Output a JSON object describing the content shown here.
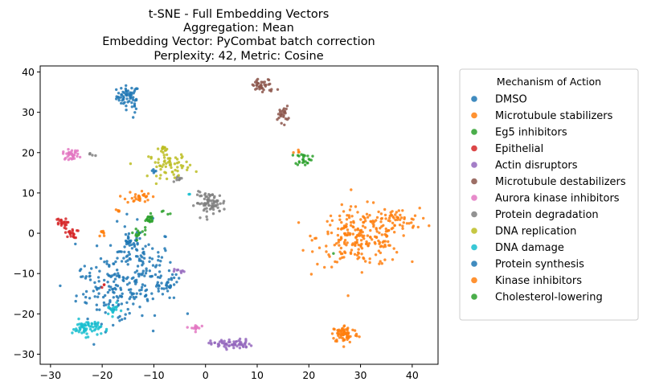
{
  "chart_data": {
    "type": "scatter",
    "title": [
      "t-SNE - Full Embedding Vectors",
      "Aggregation: Mean",
      "Embedding Vector: PyCombat batch correction",
      "Perplexity: 42, Metric: Cosine"
    ],
    "xlabel": "",
    "ylabel": "",
    "xlim": [
      -32,
      45
    ],
    "ylim": [
      -32.5,
      41.5
    ],
    "xticks": [
      -30,
      -20,
      -10,
      0,
      10,
      20,
      30,
      40
    ],
    "yticks": [
      -30,
      -20,
      -10,
      0,
      10,
      20,
      30,
      40
    ],
    "grid": false,
    "legend": {
      "title": "Mechanism of Action",
      "position": "outside-right"
    },
    "series": [
      {
        "name": "DMSO",
        "color": "#1f77b4",
        "clusters": [
          {
            "x": -15,
            "y": 34,
            "sx": 1.1,
            "sy": 1.3,
            "n": 55
          },
          {
            "x": -14,
            "y": 31,
            "sx": 0.4,
            "sy": 1.5,
            "n": 8
          },
          {
            "x": -13,
            "y": -9,
            "sx": 3.5,
            "sy": 5.5,
            "n": 140
          },
          {
            "x": -18,
            "y": -14,
            "sx": 3.5,
            "sy": 4.0,
            "n": 120
          },
          {
            "x": -10,
            "y": 15,
            "sx": 0.6,
            "sy": 0.5,
            "n": 5
          }
        ]
      },
      {
        "name": "Microtubule stabilizers",
        "color": "#ff7f0e",
        "clusters": [
          {
            "x": 30,
            "y": -1,
            "sx": 4.2,
            "sy": 3.6,
            "n": 230
          },
          {
            "x": 37,
            "y": 3,
            "sx": 2.2,
            "sy": 1.6,
            "n": 45
          },
          {
            "x": 27,
            "y": -25,
            "sx": 1.3,
            "sy": 1.1,
            "n": 75
          },
          {
            "x": -13,
            "y": 9,
            "sx": 1.2,
            "sy": 0.8,
            "n": 30
          },
          {
            "x": 18,
            "y": 20.5,
            "sx": 0.4,
            "sy": 0.4,
            "n": 4
          }
        ]
      },
      {
        "name": "Eg5 inhibitors",
        "color": "#2ca02c",
        "clusters": [
          {
            "x": 19,
            "y": 18.5,
            "sx": 0.8,
            "sy": 0.8,
            "n": 25
          },
          {
            "x": -11,
            "y": 3.5,
            "sx": 0.6,
            "sy": 0.6,
            "n": 18
          }
        ]
      },
      {
        "name": "Epithelial",
        "color": "#d62728",
        "clusters": [
          {
            "x": -28,
            "y": 2.5,
            "sx": 0.6,
            "sy": 0.6,
            "n": 22
          },
          {
            "x": -26,
            "y": 0,
            "sx": 0.6,
            "sy": 0.6,
            "n": 22
          },
          {
            "x": -20,
            "y": -13,
            "sx": 0.3,
            "sy": 0.3,
            "n": 3
          }
        ]
      },
      {
        "name": "Actin disruptors",
        "color": "#9467bd",
        "clusters": [
          {
            "x": 5,
            "y": -27.5,
            "sx": 2.0,
            "sy": 0.6,
            "n": 65
          },
          {
            "x": -5,
            "y": -9.5,
            "sx": 0.5,
            "sy": 0.4,
            "n": 8
          }
        ]
      },
      {
        "name": "Microtubule destabilizers",
        "color": "#8c564b",
        "clusters": [
          {
            "x": 11,
            "y": 36.5,
            "sx": 1.3,
            "sy": 0.9,
            "n": 40
          },
          {
            "x": 15,
            "y": 29.5,
            "sx": 0.5,
            "sy": 1.0,
            "n": 25
          }
        ]
      },
      {
        "name": "Aurora kinase inhibitors",
        "color": "#e377c2",
        "clusters": [
          {
            "x": -26,
            "y": 19.5,
            "sx": 0.8,
            "sy": 0.6,
            "n": 35
          },
          {
            "x": -2,
            "y": -23.5,
            "sx": 0.5,
            "sy": 0.4,
            "n": 15
          }
        ]
      },
      {
        "name": "Protein degradation",
        "color": "#7f7f7f",
        "clusters": [
          {
            "x": 1,
            "y": 7.5,
            "sx": 1.5,
            "sy": 1.3,
            "n": 75
          },
          {
            "x": -5,
            "y": 13.5,
            "sx": 0.4,
            "sy": 0.4,
            "n": 8
          },
          {
            "x": -22,
            "y": 19.5,
            "sx": 0.4,
            "sy": 0.3,
            "n": 4
          }
        ]
      },
      {
        "name": "DNA replication",
        "color": "#bcbd22",
        "clusters": [
          {
            "x": -7,
            "y": 17,
            "sx": 2.0,
            "sy": 1.6,
            "n": 65
          },
          {
            "x": -8,
            "y": 21,
            "sx": 0.5,
            "sy": 0.3,
            "n": 12
          }
        ]
      },
      {
        "name": "DNA damage",
        "color": "#17becf",
        "clusters": [
          {
            "x": -23,
            "y": -23.5,
            "sx": 1.4,
            "sy": 1.0,
            "n": 65
          },
          {
            "x": -18,
            "y": -19,
            "sx": 0.7,
            "sy": 0.7,
            "n": 15
          },
          {
            "x": -3,
            "y": 9.5,
            "sx": 0.3,
            "sy": 0.3,
            "n": 2
          }
        ]
      },
      {
        "name": "Protein synthesis",
        "color": "#1f77b4",
        "clusters": [
          {
            "x": -14.5,
            "y": -2,
            "sx": 0.8,
            "sy": 0.7,
            "n": 25
          },
          {
            "x": -7,
            "y": -13,
            "sx": 0.8,
            "sy": 1.2,
            "n": 25
          },
          {
            "x": -23,
            "y": -11,
            "sx": 0.7,
            "sy": 0.4,
            "n": 8
          }
        ]
      },
      {
        "name": "Kinase inhibitors",
        "color": "#ff7f0e",
        "clusters": [
          {
            "x": -20,
            "y": 0,
            "sx": 0.4,
            "sy": 0.5,
            "n": 8
          },
          {
            "x": -17,
            "y": 5.5,
            "sx": 0.4,
            "sy": 0.4,
            "n": 5
          }
        ]
      },
      {
        "name": "Cholesterol-lowering",
        "color": "#2ca02c",
        "clusters": [
          {
            "x": -13,
            "y": 0,
            "sx": 0.8,
            "sy": 0.8,
            "n": 15
          },
          {
            "x": -8,
            "y": 5,
            "sx": 0.4,
            "sy": 0.4,
            "n": 4
          },
          {
            "x": 25,
            "y": -5,
            "sx": 0.2,
            "sy": 0.2,
            "n": 1
          }
        ]
      }
    ]
  }
}
